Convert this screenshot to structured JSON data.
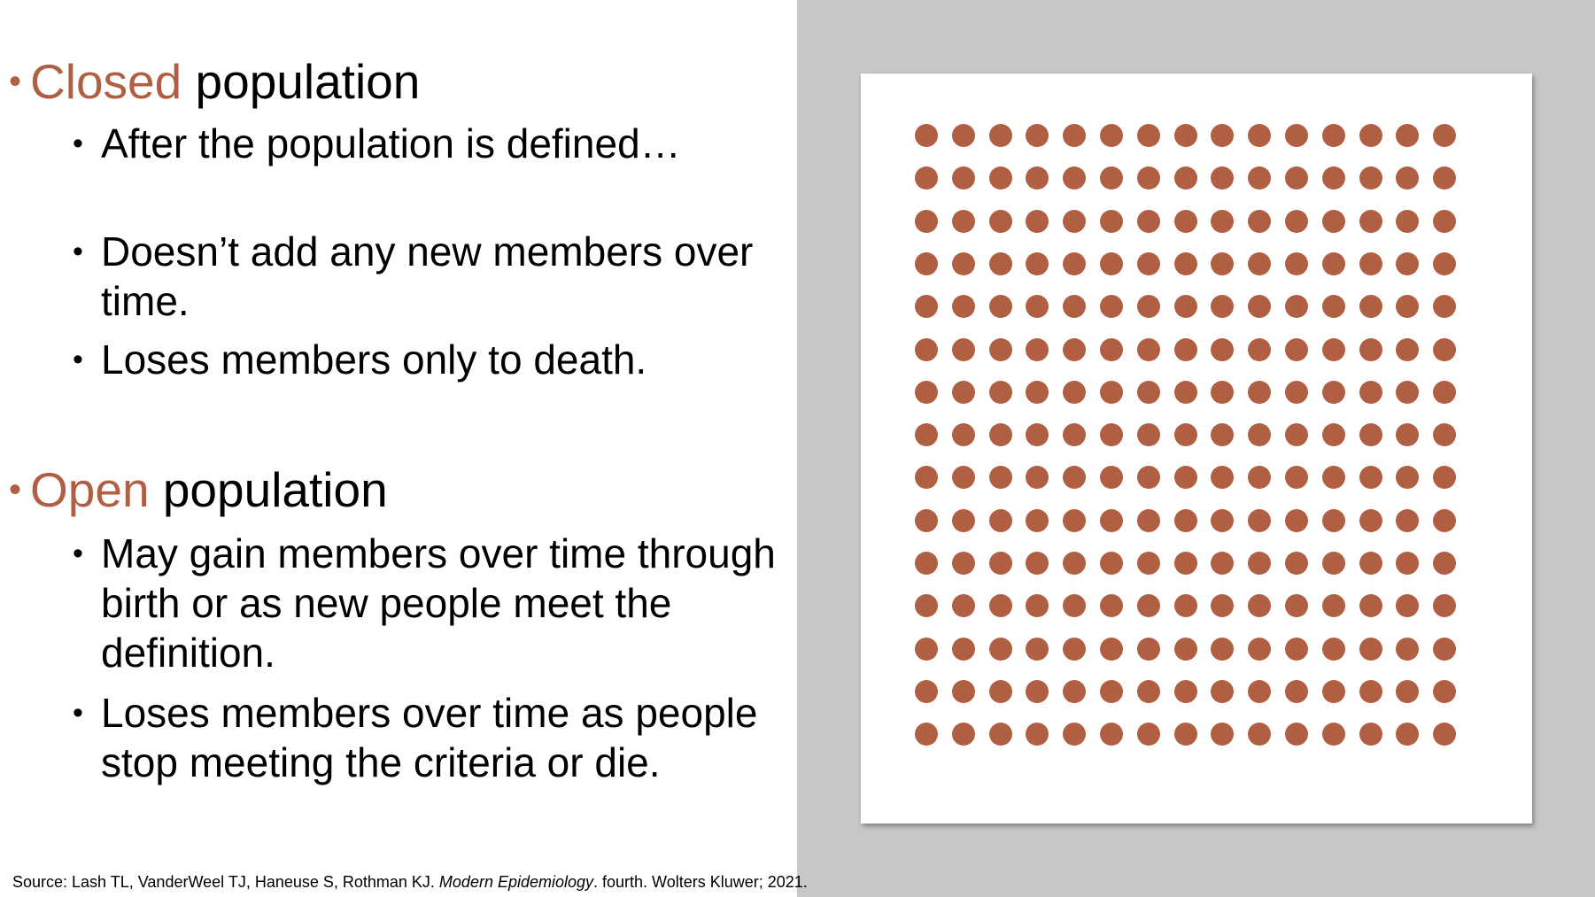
{
  "closed": {
    "label": "Closed",
    "suffix": " population",
    "bullets": [
      "After the population is defined…",
      "Doesn’t add any new members over time.",
      "Loses members only to death."
    ]
  },
  "open": {
    "label": "Open",
    "suffix": " population",
    "bullets": [
      "May gain members over time through birth or as new people meet the definition.",
      "Loses members over time as people stop meeting the criteria or die."
    ]
  },
  "source": {
    "prefix": "Source: Lash TL, VanderWeel TJ, Haneuse S, Rothman KJ. ",
    "title": "Modern Epidemiology",
    "suffix": ". fourth. Wolters Kluwer; 2021."
  },
  "colors": {
    "accent": "#b15f42",
    "panel": "#c6c8c7"
  },
  "dot_grid": {
    "rows": 15,
    "cols": 15
  }
}
